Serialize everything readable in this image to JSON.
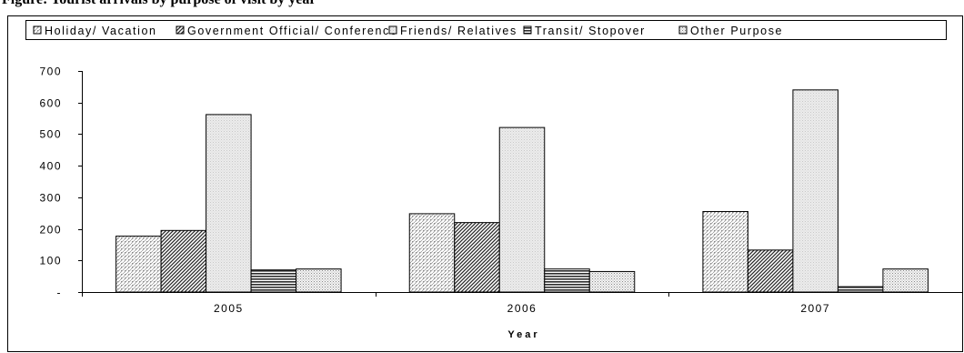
{
  "caption": "Figure: Tourist arrivals by purpose of visit by year",
  "chart_data": {
    "type": "bar",
    "categories": [
      "2005",
      "2006",
      "2007"
    ],
    "series": [
      {
        "name": "Holiday/ Vacation",
        "values": [
          177,
          248,
          255
        ],
        "pattern": "hatch-dots"
      },
      {
        "name": "Government Official/ Conference",
        "values": [
          195,
          220,
          133
        ],
        "pattern": "hatch-diagonal"
      },
      {
        "name": "Friends/ Relatives",
        "values": [
          562,
          521,
          640
        ],
        "pattern": "light-grid"
      },
      {
        "name": "Transit/ Stopover",
        "values": [
          70,
          73,
          17
        ],
        "pattern": "horizontal-lines"
      },
      {
        "name": "Other Purpose",
        "values": [
          73,
          65,
          73
        ],
        "pattern": "fine-dots"
      }
    ],
    "ylim": [
      0,
      700
    ],
    "yticks": [
      "-",
      "100",
      "200",
      "300",
      "400",
      "500",
      "600",
      "700"
    ],
    "xlabel": "Year",
    "ylabel": "",
    "legend_position": "top",
    "grid": false
  }
}
